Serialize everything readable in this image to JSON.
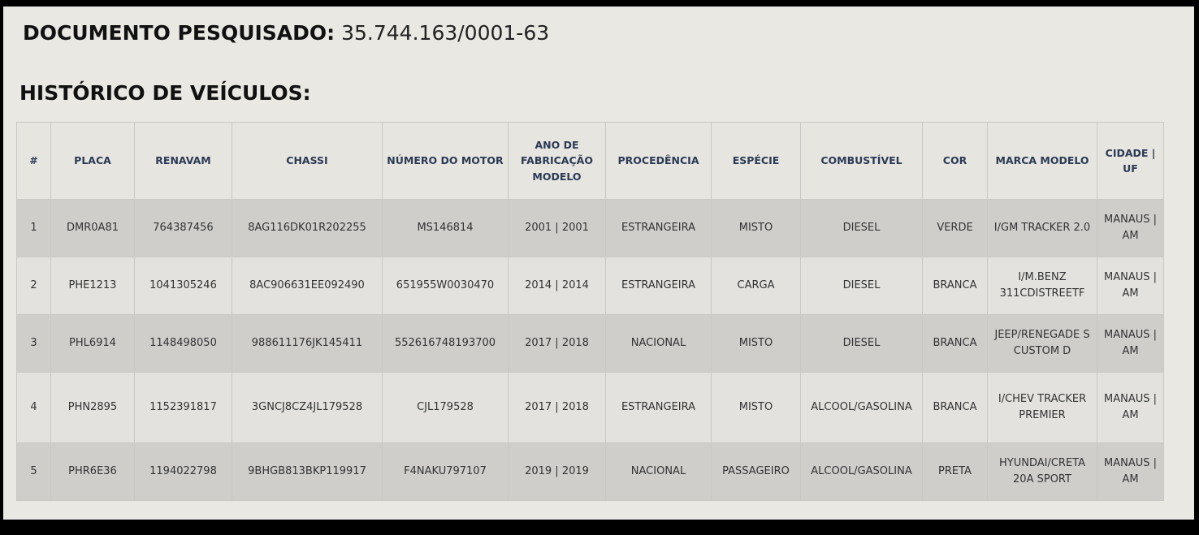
{
  "header": {
    "document_label": "DOCUMENTO PESQUISADO:",
    "document_value": "35.744.163/0001-63",
    "section_title": "HISTÓRICO DE VEÍCULOS:"
  },
  "table": {
    "columns": [
      "#",
      "PLACA",
      "RENAVAM",
      "CHASSI",
      "NÚMERO DO MOTOR",
      "ANO DE FABRICAÇÃO MODELO",
      "PROCEDÊNCIA",
      "ESPÉCIE",
      "COMBUSTÍVEL",
      "COR",
      "MARCA MODELO",
      "CIDADE | UF"
    ],
    "rows": [
      [
        "1",
        "DMR0A81",
        "764387456",
        "8AG116DK01R202255",
        "MS146814",
        "2001 | 2001",
        "ESTRANGEIRA",
        "MISTO",
        "DIESEL",
        "VERDE",
        "I/GM TRACKER 2.0",
        "MANAUS | AM"
      ],
      [
        "2",
        "PHE1213",
        "1041305246",
        "8AC906631EE092490",
        "651955W0030470",
        "2014 | 2014",
        "ESTRANGEIRA",
        "CARGA",
        "DIESEL",
        "BRANCA",
        "I/M.BENZ 311CDISTREETF",
        "MANAUS | AM"
      ],
      [
        "3",
        "PHL6914",
        "1148498050",
        "988611176JK145411",
        "552616748193700",
        "2017 | 2018",
        "NACIONAL",
        "MISTO",
        "DIESEL",
        "BRANCA",
        "JEEP/RENEGADE S CUSTOM D",
        "MANAUS | AM"
      ],
      [
        "4",
        "PHN2895",
        "1152391817",
        "3GNCJ8CZ4JL179528",
        "CJL179528",
        "2017 | 2018",
        "ESTRANGEIRA",
        "MISTO",
        "ALCOOL/GASOLINA",
        "BRANCA",
        "I/CHEV TRACKER PREMIER",
        "MANAUS | AM"
      ],
      [
        "5",
        "PHR6E36",
        "1194022798",
        "9BHGB813BKP119917",
        "F4NAKU797107",
        "2019 | 2019",
        "NACIONAL",
        "PASSAGEIRO",
        "ALCOOL/GASOLINA",
        "PRETA",
        "HYUNDAI/CRETA 20A SPORT",
        "MANAUS | AM"
      ]
    ]
  }
}
